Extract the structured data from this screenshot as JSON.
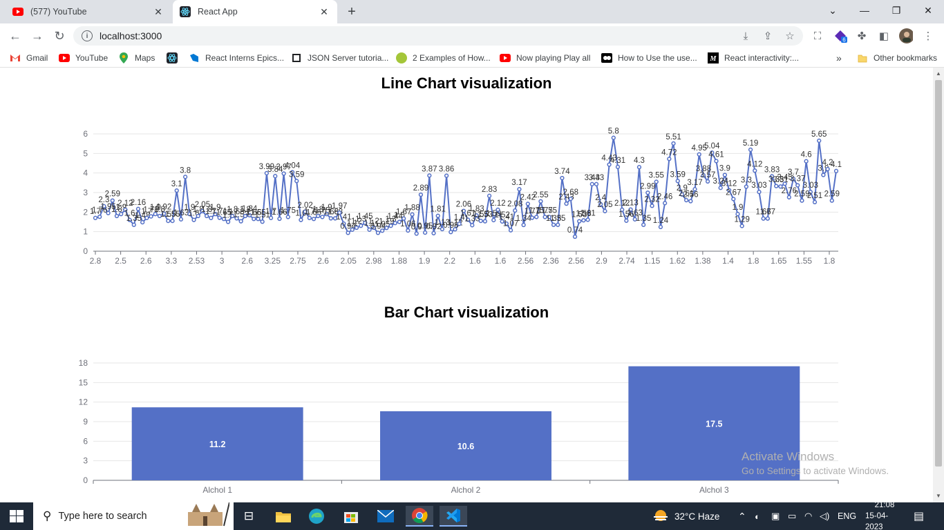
{
  "browser": {
    "tabs": [
      {
        "title": "(577) YouTube",
        "icon": "youtube-icon",
        "active": false
      },
      {
        "title": "React App",
        "icon": "react-icon",
        "active": true
      }
    ],
    "address": "localhost:3000",
    "bookmarks": [
      {
        "label": "Gmail",
        "icon": "gmail-icon"
      },
      {
        "label": "YouTube",
        "icon": "youtube-icon"
      },
      {
        "label": "Maps",
        "icon": "maps-icon"
      },
      {
        "label": "",
        "icon": "react-icon"
      },
      {
        "label": "React Interns Epics...",
        "icon": "azure-icon"
      },
      {
        "label": "JSON Server tutoria...",
        "icon": "page-icon"
      },
      {
        "label": "2 Examples of How...",
        "icon": "avatar-icon"
      },
      {
        "label": "Now playing Play all",
        "icon": "youtube-icon"
      },
      {
        "label": "How to Use the use...",
        "icon": "dev-icon"
      },
      {
        "label": "React interactivity:...",
        "icon": "mdn-icon"
      }
    ],
    "bookmarks_overflow": "»",
    "other_bookmarks": "Other bookmarks",
    "extension_badge": "6"
  },
  "page": {
    "line_title": "Line Chart visualization",
    "bar_title": "Bar Chart visualization",
    "watermark_line1": "Activate Windows",
    "watermark_line2": "Go to Settings to activate Windows."
  },
  "chart_data": [
    {
      "type": "line",
      "title": "Line Chart visualization",
      "ylim": [
        0,
        6
      ],
      "yticks": [
        0,
        1,
        2,
        3,
        4,
        5,
        6
      ],
      "xtick_labels": [
        "2.8",
        "2.5",
        "2.6",
        "3.3",
        "2.53",
        "3",
        "2.6",
        "3.25",
        "2.75",
        "2.6",
        "2.05",
        "2.98",
        "1.88",
        "1.9",
        "2.2",
        "1.6",
        "1.6",
        "2.56",
        "2.36",
        "2.56",
        "2.9",
        "2.74",
        "1.15",
        "1.62",
        "1.38",
        "1.4",
        "1.8",
        "1.65",
        "1.55",
        "1.8"
      ],
      "values": [
        1.7,
        1.76,
        2.3,
        1.95,
        2.59,
        1.8,
        1.9,
        2.12,
        1.6,
        1.35,
        2.16,
        1.48,
        1.7,
        1.78,
        1.9,
        1.8,
        1.92,
        1.55,
        1.55,
        3.1,
        1.63,
        3.8,
        1.9,
        1.6,
        1.8,
        2.05,
        1.8,
        1.7,
        1.9,
        1.71,
        1.65,
        1.5,
        1.8,
        1.68,
        1.53,
        1.8,
        1.84,
        1.65,
        1.65,
        1.51,
        3.99,
        1.7,
        3.84,
        1.66,
        3.97,
        1.75,
        4.04,
        3.59,
        1.6,
        2.02,
        1.7,
        1.65,
        1.8,
        1.75,
        1.9,
        1.68,
        1.68,
        1.97,
        1.41,
        0.94,
        1.1,
        1.2,
        1.3,
        1.45,
        1.1,
        1.2,
        0.94,
        1.05,
        1.19,
        1.3,
        1.44,
        1.5,
        1.67,
        1.06,
        1.88,
        0.9,
        2.89,
        0.95,
        3.87,
        0.92,
        1.81,
        1.13,
        3.86,
        0.98,
        1.12,
        1.4,
        2.06,
        1.61,
        1.33,
        1.83,
        1.55,
        1.53,
        2.83,
        1.59,
        2.12,
        1.52,
        1.41,
        1.07,
        2.08,
        3.17,
        1.34,
        2.42,
        1.71,
        1.75,
        2.55,
        1.75,
        1.75,
        1.35,
        1.35,
        3.74,
        2.43,
        2.68,
        0.74,
        1.53,
        1.58,
        1.61,
        3.43,
        3.43,
        2.4,
        2.05,
        4.43,
        5.8,
        4.31,
        2.12,
        1.56,
        2.13,
        1.63,
        4.3,
        1.35,
        2.99,
        2.32,
        3.55,
        1.24,
        2.46,
        4.72,
        5.51,
        3.59,
        2.9,
        2.61,
        2.56,
        3.17,
        4.95,
        3.88,
        3.57,
        5.04,
        4.61,
        3.24,
        3.9,
        3.12,
        2.67,
        1.9,
        1.29,
        3.3,
        5.19,
        4.12,
        3.03,
        1.67,
        1.67,
        3.83,
        3.33,
        3.31,
        3.45,
        2.76,
        3.7,
        3.37,
        2.59,
        4.6,
        3.03,
        2.51,
        5.65,
        3.9,
        4.2,
        2.59,
        4.1
      ]
    },
    {
      "type": "bar",
      "title": "Bar Chart visualization",
      "categories": [
        "Alchol 1",
        "Alchol 2",
        "Alchol 3"
      ],
      "values": [
        11.2,
        10.6,
        17.5
      ],
      "ylim": [
        0,
        18
      ],
      "yticks": [
        0,
        3,
        6,
        9,
        12,
        15,
        18
      ],
      "color": "#5470c6"
    }
  ],
  "taskbar": {
    "search_placeholder": "Type here to search",
    "weather": "32°C  Haze",
    "language": "ENG",
    "time": "21:08",
    "date": "15-04-2023"
  }
}
